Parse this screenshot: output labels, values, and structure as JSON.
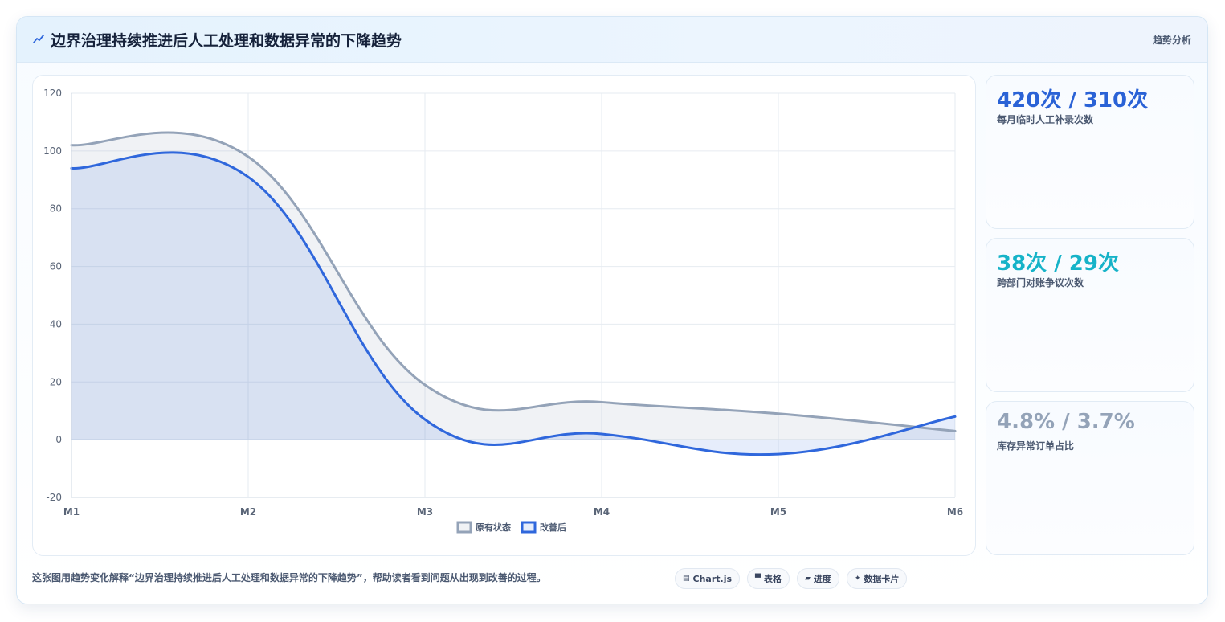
{
  "header": {
    "title": "边界治理持续推进后人工处理和数据异常的下降趋势",
    "tag": "趋势分析",
    "icon": "trend-line-icon"
  },
  "stats": [
    {
      "value": "420次 / 310次",
      "label": "每月临时人工补录次数",
      "color": "#2a62d6"
    },
    {
      "value": "38次 / 29次",
      "label": "跨部门对账争议次数",
      "color": "#16b3c8"
    },
    {
      "value": "4.8% / 3.7%",
      "label": "库存异常订单占比",
      "color": "#94a3b8"
    }
  ],
  "caption": "这张图用趋势变化解释“边界治理持续推进后人工处理和数据异常的下降趋势”，帮助读者看到问题从出现到改善的过程。",
  "chips": [
    {
      "icon": "chart-icon",
      "glyph": "▤",
      "label": "Chart.js"
    },
    {
      "icon": "table-icon",
      "glyph": "▀",
      "label": "表格"
    },
    {
      "icon": "progress-icon",
      "glyph": "▰",
      "label": "进度"
    },
    {
      "icon": "sparkle-icon",
      "glyph": "✦",
      "label": "数据卡片"
    }
  ],
  "chart_data": {
    "type": "area",
    "categories": [
      "M1",
      "M2",
      "M3",
      "M4",
      "M5",
      "M6"
    ],
    "ylim": [
      -20,
      120
    ],
    "yticks": [
      120,
      100,
      80,
      60,
      40,
      20,
      0,
      -20
    ],
    "grid": true,
    "legend_position": "bottom",
    "series": [
      {
        "name": "原有状态",
        "values": [
          102,
          98,
          19,
          13,
          9,
          3
        ],
        "color": "#94a3b8",
        "fill": "rgba(148,163,184,0.14)"
      },
      {
        "name": "改善后",
        "values": [
          94,
          91,
          7,
          2,
          -5,
          8
        ],
        "color": "#2f67dc",
        "fill": "rgba(47,103,220,0.12)"
      }
    ]
  }
}
